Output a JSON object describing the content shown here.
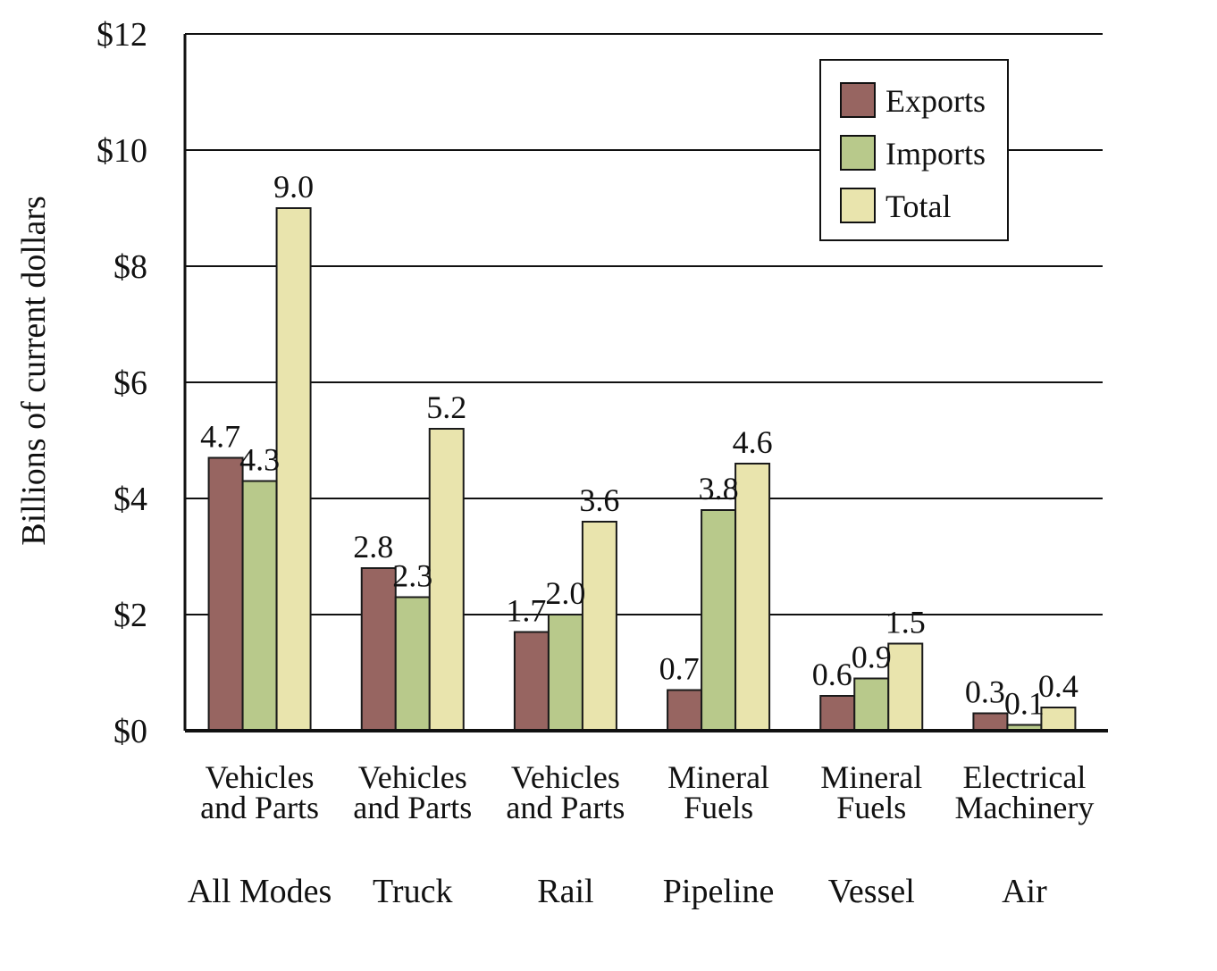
{
  "chart_data": {
    "type": "bar",
    "title": "",
    "xlabel": "",
    "ylabel": "Billions of current dollars",
    "ylim": [
      0,
      12
    ],
    "yticks": [
      0,
      2,
      4,
      6,
      8,
      10,
      12
    ],
    "ytick_labels": [
      "$0",
      "$2",
      "$4",
      "$6",
      "$8",
      "$10",
      "$12"
    ],
    "grid": true,
    "legend_position": "top-right",
    "categories": [
      {
        "commodity": [
          "Vehicles",
          "and Parts"
        ],
        "mode": "All Modes"
      },
      {
        "commodity": [
          "Vehicles",
          "and Parts"
        ],
        "mode": "Truck"
      },
      {
        "commodity": [
          "Vehicles",
          "and Parts"
        ],
        "mode": "Rail"
      },
      {
        "commodity": [
          "Mineral",
          "Fuels"
        ],
        "mode": "Pipeline"
      },
      {
        "commodity": [
          "Mineral",
          "Fuels"
        ],
        "mode": "Vessel"
      },
      {
        "commodity": [
          "Electrical",
          "Machinery"
        ],
        "mode": "Air"
      }
    ],
    "series": [
      {
        "name": "Exports",
        "color": "#976561",
        "values": [
          4.7,
          2.8,
          1.7,
          0.7,
          0.6,
          0.3
        ],
        "labels": [
          "4.7",
          "2.8",
          "1.7",
          "0.7",
          "0.6",
          "0.3"
        ]
      },
      {
        "name": "Imports",
        "color": "#b8c98b",
        "values": [
          4.3,
          2.3,
          2.0,
          3.8,
          0.9,
          0.1
        ],
        "labels": [
          "4.3",
          "2.3",
          "2.0",
          "3.8",
          "0.9",
          "0.1"
        ]
      },
      {
        "name": "Total",
        "color": "#e9e4ad",
        "values": [
          9.0,
          5.2,
          3.6,
          4.6,
          1.5,
          0.4
        ],
        "labels": [
          "9.0",
          "5.2",
          "3.6",
          "4.6",
          "1.5",
          "0.4"
        ]
      }
    ]
  }
}
